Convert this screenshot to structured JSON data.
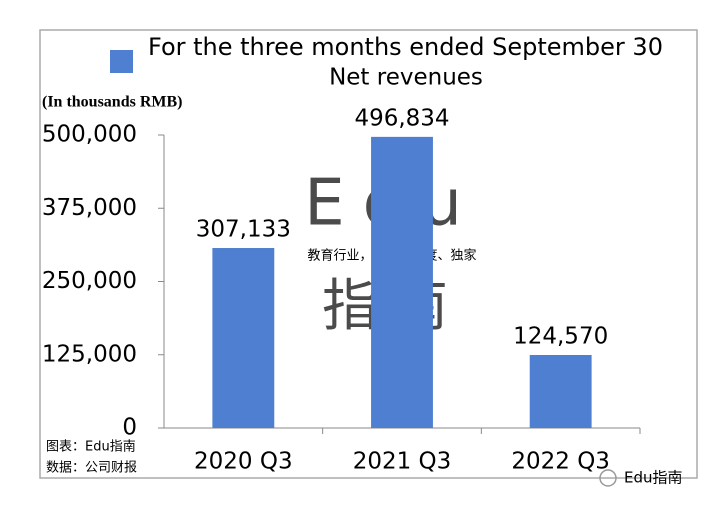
{
  "chart_data": {
    "type": "bar",
    "title": "Net revenues",
    "y_label": "(In thousands RMB)",
    "categories": [
      "2020 Q3",
      "2021 Q3",
      "2022 Q3"
    ],
    "series": [
      {
        "name": "For the three months ended September 30",
        "color": "#4f7fd0",
        "values": [
          307133,
          496834,
          124570
        ],
        "value_labels": [
          "307,133",
          "496,834",
          "124,570"
        ]
      }
    ],
    "ylim": [
      0,
      500000
    ],
    "yticks": [
      0,
      {
        "value": 125000,
        "label": "125,000"
      },
      {
        "value": 250000,
        "label": "250,000"
      },
      {
        "value": 375000,
        "label": "375,000"
      },
      {
        "value": 500000,
        "label": "500,000"
      }
    ],
    "grid": false,
    "legend": "top",
    "annotations": [
      "Edu",
      "指南",
      "教育行业，前沿、深度、独家",
      "图表：Edu指南",
      "数据：公司财报",
      "Edu指南"
    ]
  }
}
